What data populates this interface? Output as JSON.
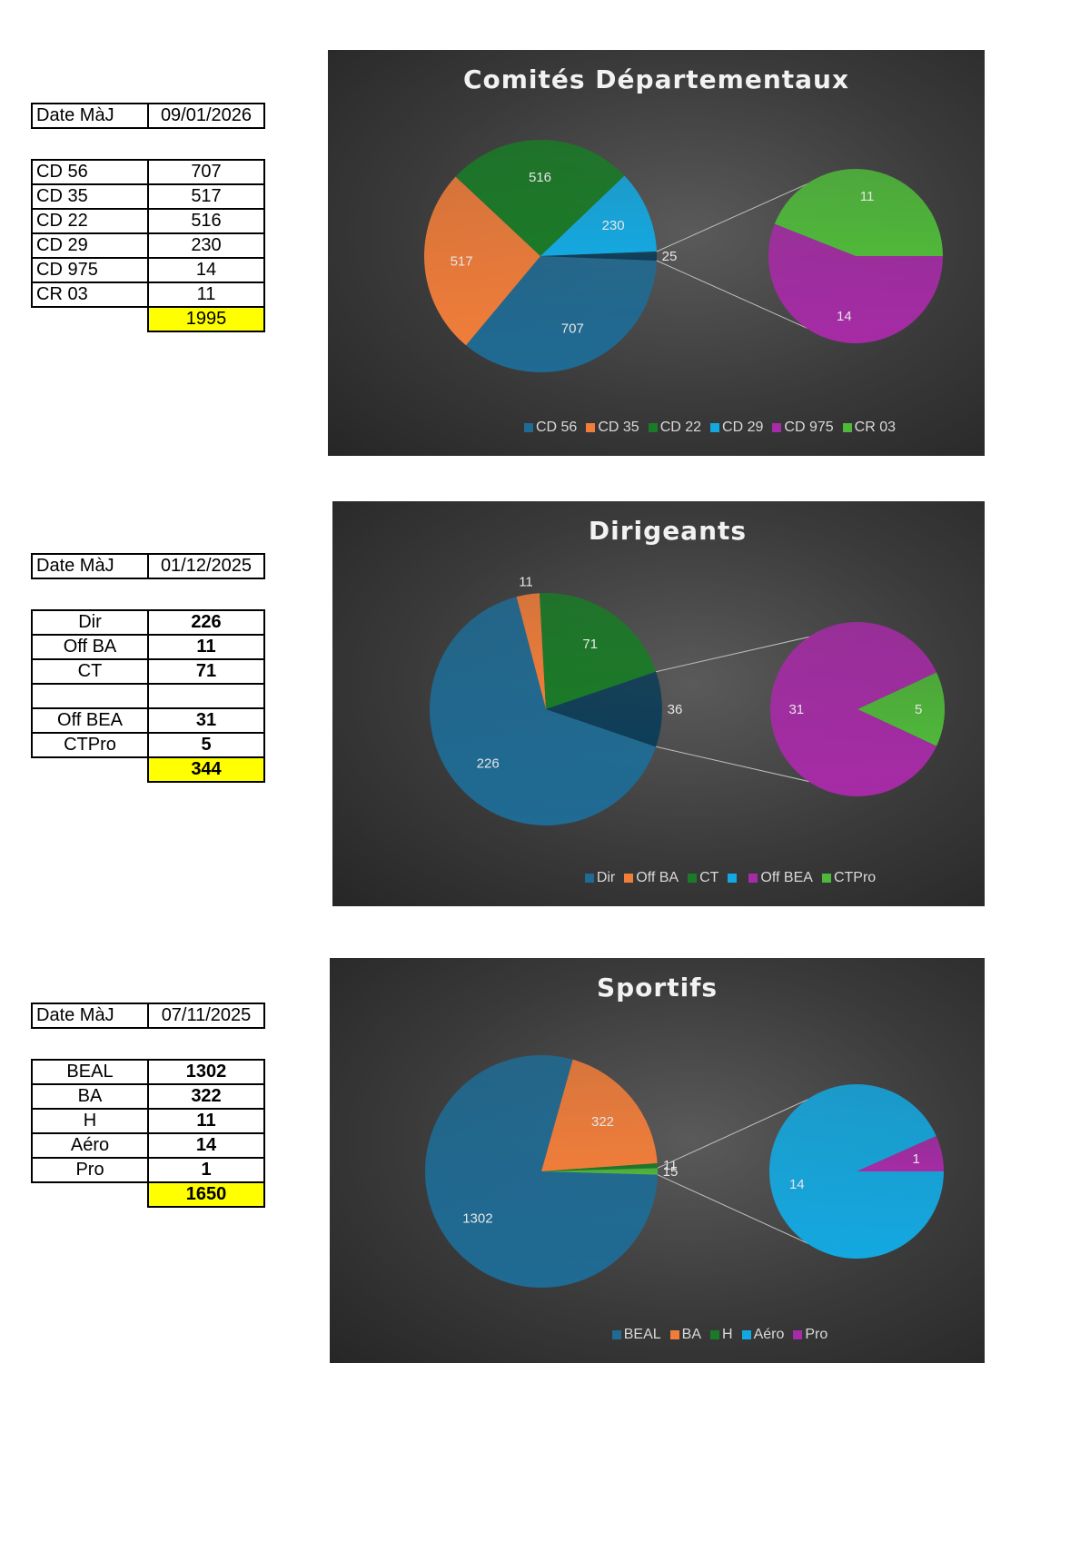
{
  "sections": [
    {
      "date_label": "Date MàJ",
      "date_value": "09/01/2026",
      "rows": [
        {
          "label": "CD 56",
          "value": "707"
        },
        {
          "label": "CD 35",
          "value": "517"
        },
        {
          "label": "CD 22",
          "value": "516"
        },
        {
          "label": "CD 29",
          "value": "230"
        },
        {
          "label": "CD 975",
          "value": "14"
        },
        {
          "label": "CR 03",
          "value": "11"
        }
      ],
      "total": "1995"
    },
    {
      "date_label": "Date MàJ",
      "date_value": "01/12/2025",
      "rows": [
        {
          "label": "Dir",
          "value": "226"
        },
        {
          "label": "Off BA",
          "value": "11"
        },
        {
          "label": "CT",
          "value": "71"
        },
        {
          "label": "",
          "value": ""
        },
        {
          "label": "Off BEA",
          "value": "31"
        },
        {
          "label": "CTPro",
          "value": "5"
        }
      ],
      "total": "344"
    },
    {
      "date_label": "Date MàJ",
      "date_value": "07/11/2025",
      "rows": [
        {
          "label": "BEAL",
          "value": "1302"
        },
        {
          "label": "BA",
          "value": "322"
        },
        {
          "label": "H",
          "value": "11"
        },
        {
          "label": "Aéro",
          "value": "14"
        },
        {
          "label": "Pro",
          "value": "1"
        }
      ],
      "total": "1650"
    }
  ],
  "colors": {
    "darkblue": "#1f6b94",
    "orange": "#f07d3a",
    "darkgreen": "#1a7a27",
    "lightblue": "#14a8e0",
    "magenta": "#a62ba6",
    "lightgreen": "#4fb83a",
    "other": "#0d3d58"
  },
  "chart_data": [
    {
      "type": "pie",
      "subtype": "pie-of-pie",
      "title": "Comités Départementaux",
      "main": [
        {
          "name": "CD 56",
          "value": 707,
          "color": "darkblue"
        },
        {
          "name": "CD 35",
          "value": 517,
          "color": "orange"
        },
        {
          "name": "CD 22",
          "value": 516,
          "color": "darkgreen"
        },
        {
          "name": "CD 29",
          "value": 230,
          "color": "lightblue"
        },
        {
          "name": "other",
          "value": 25,
          "color": "other"
        }
      ],
      "secondary": [
        {
          "name": "CD 975",
          "value": 14,
          "color": "magenta"
        },
        {
          "name": "CR 03",
          "value": 11,
          "color": "lightgreen"
        }
      ],
      "legend": [
        {
          "name": "CD 56",
          "color": "darkblue"
        },
        {
          "name": "CD 35",
          "color": "orange"
        },
        {
          "name": "CD 22",
          "color": "darkgreen"
        },
        {
          "name": "CD 29",
          "color": "lightblue"
        },
        {
          "name": "CD 975",
          "color": "magenta"
        },
        {
          "name": "CR 03",
          "color": "lightgreen"
        }
      ],
      "legend_position": "bottom"
    },
    {
      "type": "pie",
      "subtype": "pie-of-pie",
      "title": "Dirigeants",
      "main": [
        {
          "name": "Dir",
          "value": 226,
          "color": "darkblue"
        },
        {
          "name": "Off BA",
          "value": 11,
          "color": "orange"
        },
        {
          "name": "CT",
          "value": 71,
          "color": "darkgreen"
        },
        {
          "name": "other",
          "value": 36,
          "color": "other"
        }
      ],
      "secondary": [
        {
          "name": "Off BEA",
          "value": 31,
          "color": "magenta"
        },
        {
          "name": "CTPro",
          "value": 5,
          "color": "lightgreen"
        }
      ],
      "legend": [
        {
          "name": "Dir",
          "color": "darkblue"
        },
        {
          "name": "Off BA",
          "color": "orange"
        },
        {
          "name": "CT",
          "color": "darkgreen"
        },
        {
          "name": "",
          "color": "lightblue"
        },
        {
          "name": "Off BEA",
          "color": "magenta"
        },
        {
          "name": "CTPro",
          "color": "lightgreen"
        }
      ],
      "legend_position": "bottom"
    },
    {
      "type": "pie",
      "subtype": "pie-of-pie",
      "title": "Sportifs",
      "main": [
        {
          "name": "BEAL",
          "value": 1302,
          "color": "darkblue"
        },
        {
          "name": "BA",
          "value": 322,
          "color": "orange"
        },
        {
          "name": "H",
          "value": 11,
          "color": "darkgreen"
        },
        {
          "name": "other",
          "value": 15,
          "color": "lightgreen"
        }
      ],
      "secondary": [
        {
          "name": "Aéro",
          "value": 14,
          "color": "lightblue"
        },
        {
          "name": "Pro",
          "value": 1,
          "color": "magenta"
        }
      ],
      "legend": [
        {
          "name": "BEAL",
          "color": "darkblue"
        },
        {
          "name": "BA",
          "color": "orange"
        },
        {
          "name": "H",
          "color": "darkgreen"
        },
        {
          "name": "Aéro",
          "color": "lightblue"
        },
        {
          "name": "Pro",
          "color": "magenta"
        }
      ],
      "legend_position": "bottom"
    }
  ]
}
